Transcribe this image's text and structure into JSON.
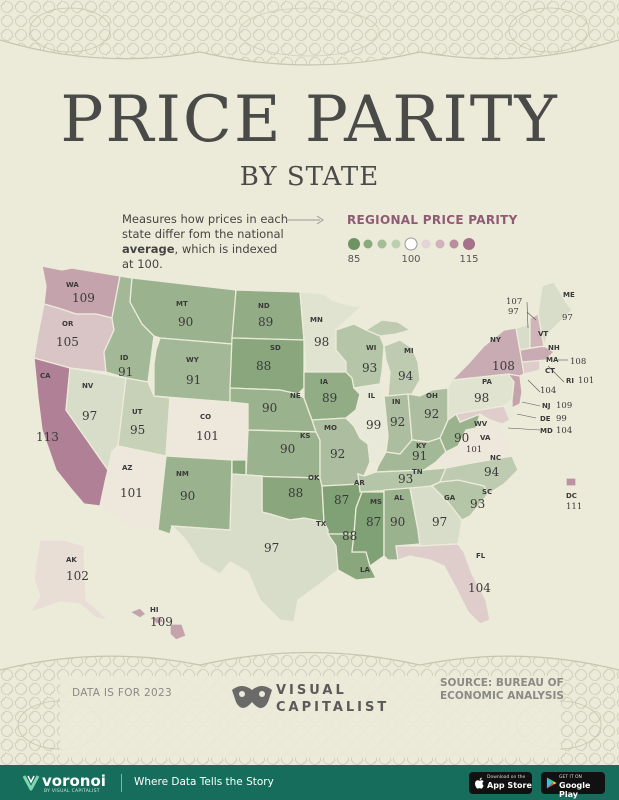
{
  "title": "PRICE PARITY",
  "subtitle": "BY STATE",
  "description": {
    "text_before": "Measures how prices in each state differ fom the national ",
    "text_bold": "average",
    "text_after": ", which is indexed at 100."
  },
  "legend": {
    "title": "REGIONAL PRICE PARITY",
    "min_label": "85",
    "mid_label": "100",
    "max_label": "115",
    "colors": [
      "#6f9464",
      "#8aaa7e",
      "#a3bd97",
      "#bccfb0",
      "#ffffff",
      "#e4d3d6",
      "#d1b1bb",
      "#b98c9e",
      "#a6708a"
    ]
  },
  "colors": {
    "low": "#6f9464",
    "neutral": "#f2efe2",
    "high": "#a6708a",
    "background": "#ecebd9",
    "footer": "#176d5b",
    "legend_title": "#8f5a74"
  },
  "states": {
    "WA": 109,
    "OR": 105,
    "CA": 113,
    "ID": 91,
    "NV": 97,
    "MT": 90,
    "WY": 91,
    "UT": 95,
    "AZ": 101,
    "CO": 101,
    "NM": 90,
    "ND": 89,
    "SD": 88,
    "NE": 90,
    "KS": 90,
    "OK": 88,
    "TX": 97,
    "MN": 98,
    "IA": 89,
    "MO": 92,
    "AR": 87,
    "LA": 88,
    "WI": 93,
    "IL": 99,
    "MS": 87,
    "MI": 94,
    "IN": 92,
    "KY": 91,
    "TN": 93,
    "AL": 90,
    "OH": 92,
    "GA": 97,
    "FL": 104,
    "SC": 93,
    "NC": 94,
    "VA": 101,
    "WV": 90,
    "PA": 98,
    "NY": 108,
    "ME": 97,
    "VT": 97,
    "NH": 107,
    "MA": 108,
    "RI": 101,
    "CT": 104,
    "NJ": 109,
    "DE": 99,
    "MD": 104,
    "DC": 111,
    "AK": 102,
    "HI": 109
  },
  "data_note": "DATA IS FOR 2023",
  "source": {
    "label": "SOURCE:",
    "text": "BUREAU OF ECONOMIC ANALYSIS"
  },
  "logo": {
    "line1": "VISUAL",
    "line2": "CAPITALIST"
  },
  "footer": {
    "brand": "voronoi",
    "brand_sub": "BY VISUAL CAPITALIST",
    "tagline": "Where Data Tells the Story",
    "appstore_small": "Download on the",
    "appstore_big": "App Store",
    "googleplay_small": "GET IT ON",
    "googleplay_big": "Google Play"
  },
  "icons": {
    "arrow": "arrow-right-icon",
    "logo": "visual-capitalist-logo-icon",
    "apple": "apple-icon",
    "play": "google-play-icon"
  }
}
